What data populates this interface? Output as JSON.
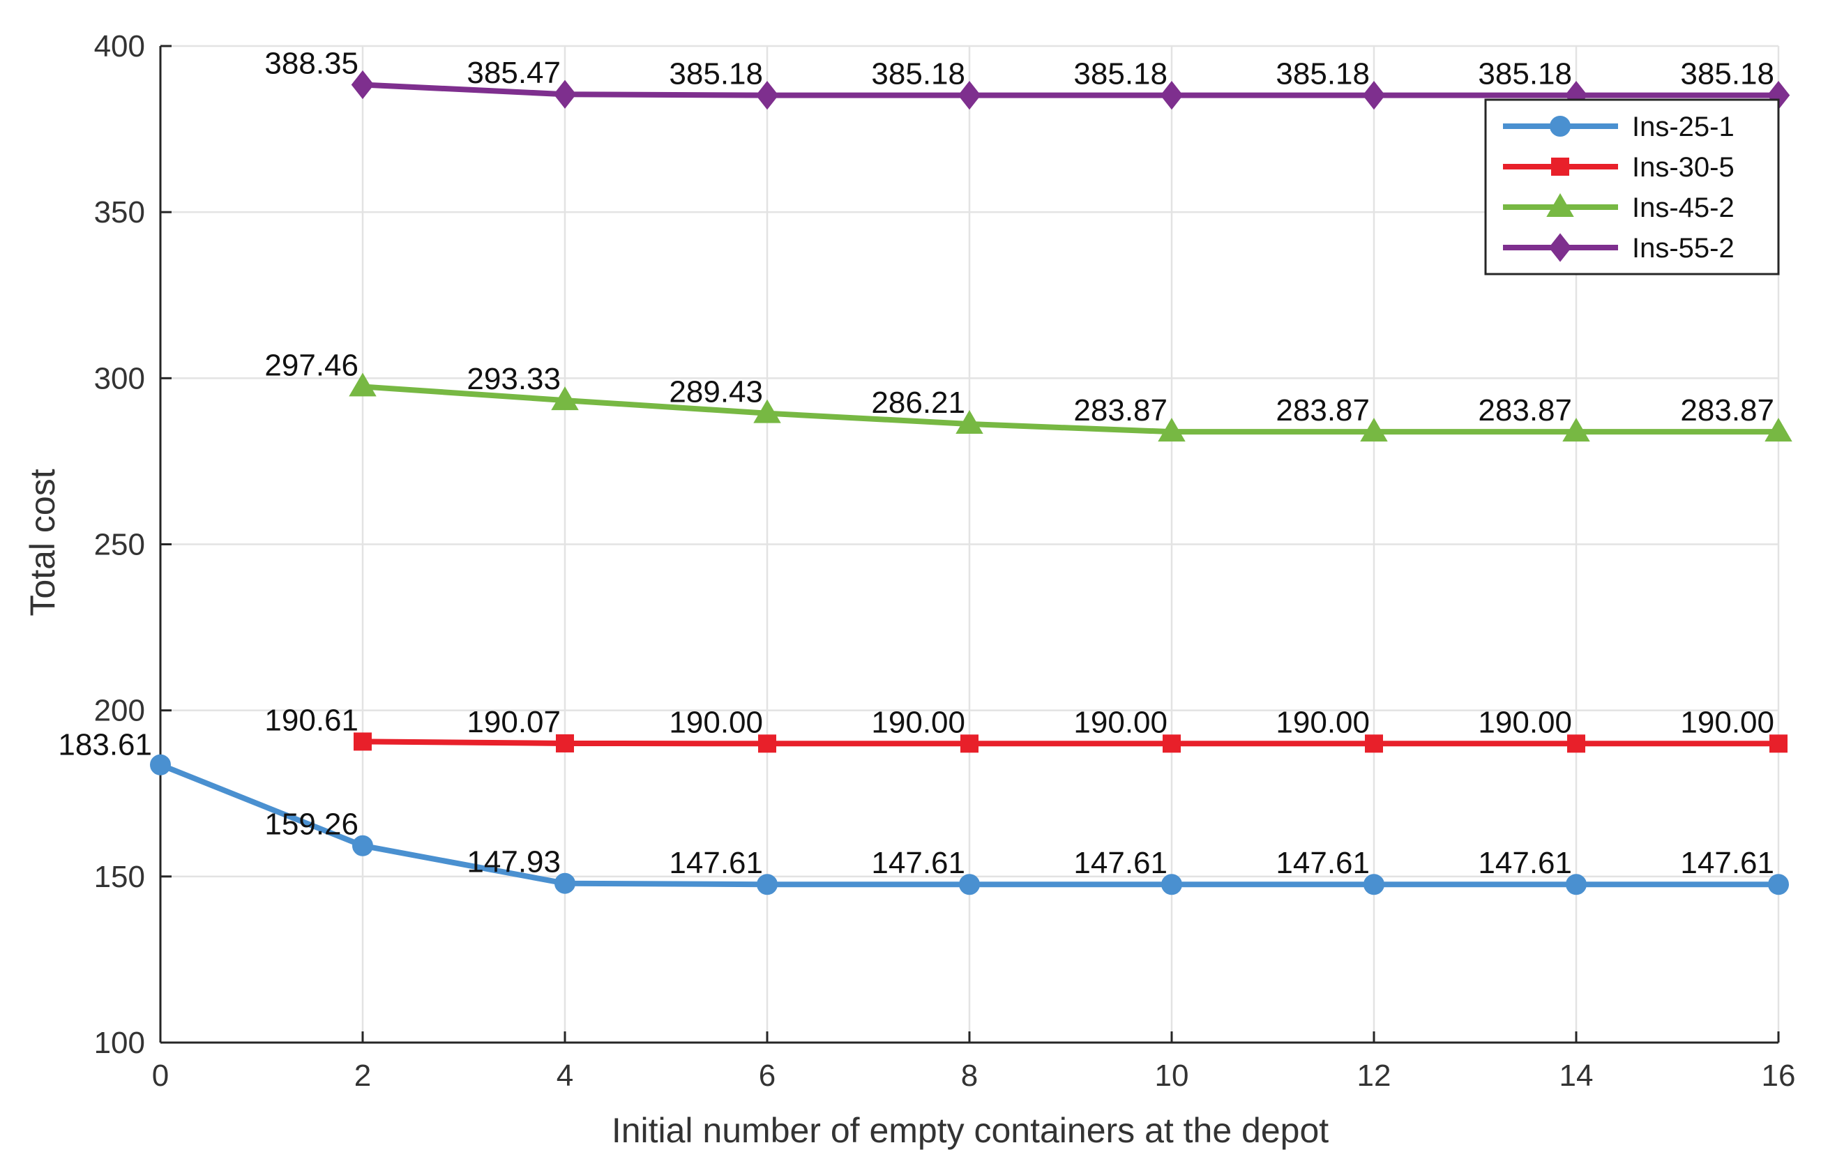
{
  "chart_data": {
    "type": "line",
    "title": "",
    "xlabel": "Initial number of empty containers at the depot",
    "ylabel": "Total cost",
    "xlim": [
      0,
      16
    ],
    "ylim": [
      100,
      400
    ],
    "xticks": [
      0,
      2,
      4,
      6,
      8,
      10,
      12,
      14,
      16
    ],
    "yticks": [
      100,
      150,
      200,
      250,
      300,
      350,
      400
    ],
    "grid": true,
    "legend_position": "top-right",
    "series": [
      {
        "name": "Ins-25-1",
        "color": "#4A90D0",
        "marker": "circle",
        "x": [
          0,
          2,
          4,
          6,
          8,
          10,
          12,
          14,
          16
        ],
        "values": [
          183.61,
          159.26,
          147.93,
          147.61,
          147.61,
          147.61,
          147.61,
          147.61,
          147.61
        ],
        "labels": [
          "183.61",
          "159.26",
          "147.93",
          "147.61",
          "147.61",
          "147.61",
          "147.61",
          "147.61",
          "147.61"
        ]
      },
      {
        "name": "Ins-30-5",
        "color": "#E8202A",
        "marker": "square",
        "x": [
          2,
          4,
          6,
          8,
          10,
          12,
          14,
          16
        ],
        "values": [
          190.61,
          190.07,
          190.0,
          190.0,
          190.0,
          190.0,
          190.0,
          190.0
        ],
        "labels": [
          "190.61",
          "190.07",
          "190.00",
          "190.00",
          "190.00",
          "190.00",
          "190.00",
          "190.00"
        ]
      },
      {
        "name": "Ins-45-2",
        "color": "#77B843",
        "marker": "triangle",
        "x": [
          2,
          4,
          6,
          8,
          10,
          12,
          14,
          16
        ],
        "values": [
          297.46,
          293.33,
          289.43,
          286.21,
          283.87,
          283.87,
          283.87,
          283.87
        ],
        "labels": [
          "297.46",
          "293.33",
          "289.43",
          "286.21",
          "283.87",
          "283.87",
          "283.87",
          "283.87"
        ]
      },
      {
        "name": "Ins-55-2",
        "color": "#7E2F8E",
        "marker": "diamond",
        "x": [
          2,
          4,
          6,
          8,
          10,
          12,
          14,
          16
        ],
        "values": [
          388.35,
          385.47,
          385.18,
          385.18,
          385.18,
          385.18,
          385.18,
          385.18
        ],
        "labels": [
          "388.35",
          "385.47",
          "385.18",
          "385.18",
          "385.18",
          "385.18",
          "385.18",
          "385.18"
        ]
      }
    ]
  }
}
